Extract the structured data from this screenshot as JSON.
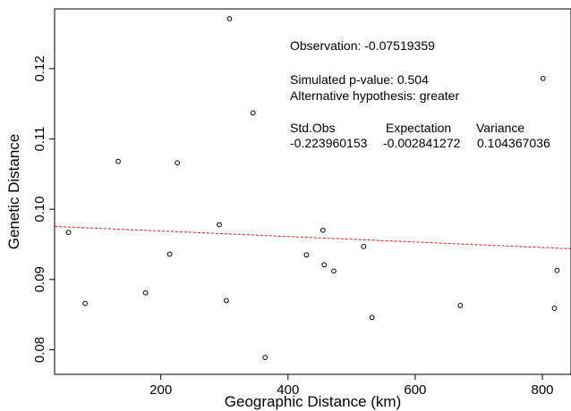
{
  "chart_data": {
    "type": "scatter",
    "title": "",
    "xlabel": "Geographic Distance (km)",
    "ylabel": "Genetic Distance",
    "xlim": [
      33,
      845
    ],
    "ylim": [
      0.0765,
      0.1285
    ],
    "xticks": [
      200,
      400,
      600,
      800
    ],
    "yticks": [
      0.08,
      0.09,
      0.1,
      0.11,
      0.12
    ],
    "ytick_labels": [
      "0.08",
      "0.09",
      "0.10",
      "0.11",
      "0.12"
    ],
    "grid": false,
    "points": [
      {
        "x": 308,
        "y": 0.1271
      },
      {
        "x": 801,
        "y": 0.1186
      },
      {
        "x": 345,
        "y": 0.1137
      },
      {
        "x": 133,
        "y": 0.1068
      },
      {
        "x": 226,
        "y": 0.1066
      },
      {
        "x": 292,
        "y": 0.0978
      },
      {
        "x": 55,
        "y": 0.0967
      },
      {
        "x": 455,
        "y": 0.097
      },
      {
        "x": 519,
        "y": 0.0947
      },
      {
        "x": 214,
        "y": 0.0936
      },
      {
        "x": 429,
        "y": 0.0935
      },
      {
        "x": 457,
        "y": 0.0921
      },
      {
        "x": 472,
        "y": 0.0912
      },
      {
        "x": 823,
        "y": 0.0913
      },
      {
        "x": 176,
        "y": 0.0881
      },
      {
        "x": 303,
        "y": 0.087
      },
      {
        "x": 81,
        "y": 0.0866
      },
      {
        "x": 671,
        "y": 0.0863
      },
      {
        "x": 819,
        "y": 0.0859
      },
      {
        "x": 532,
        "y": 0.0846
      },
      {
        "x": 364,
        "y": 0.0789
      }
    ],
    "regression_line": {
      "color": "#e8161c",
      "style": "dashed",
      "x": [
        33,
        845
      ],
      "y": [
        0.09755,
        0.09438
      ]
    },
    "point_color": "#000000",
    "annotations": {
      "observation": "Observation: -0.07519359",
      "pvalue": "Simulated p-value: 0.504",
      "alternative": "Alternative hypothesis: greater",
      "header_std": "Std.Obs",
      "header_expectation": "Expectation",
      "header_variance": "Variance",
      "val_std": "-0.223960153",
      "val_expectation": "-0.002841272",
      "val_variance": "0.104367036"
    }
  }
}
